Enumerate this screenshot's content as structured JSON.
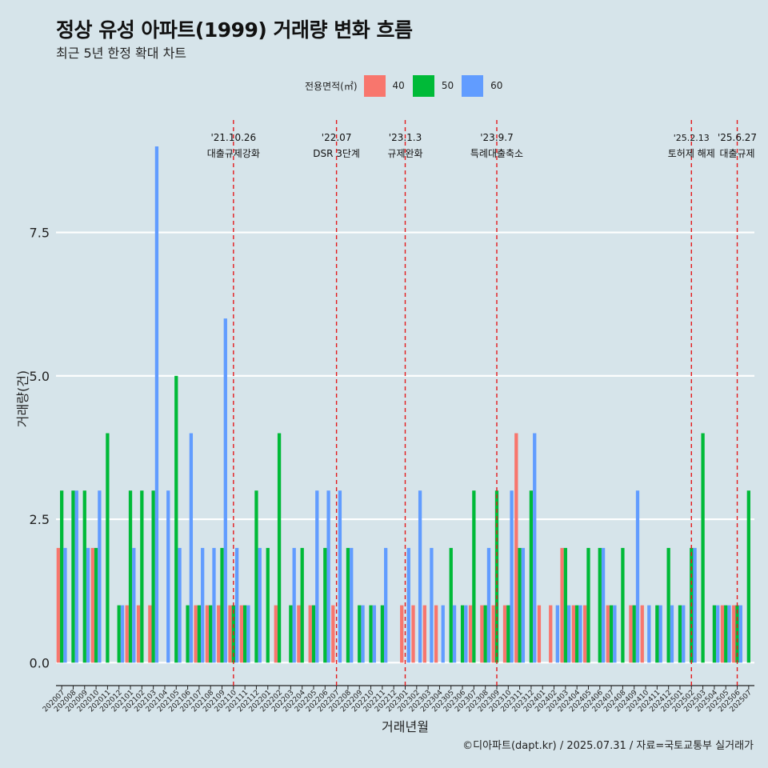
{
  "chart_data": {
    "type": "bar",
    "title": "정상 유성 아파트(1999) 거래량 변화 흐름",
    "subtitle": "최근 5년 한정 확대 차트",
    "xlabel": "거래년월",
    "ylabel": "거래량(건)",
    "ylim": [
      -0.4,
      9.6
    ],
    "y_ticks": [
      "0.0",
      "2.5",
      "5.0",
      "7.5"
    ],
    "grid": true,
    "legend": {
      "title": "전용면적(㎡)",
      "position": "top"
    },
    "categories": [
      "202007",
      "202008",
      "202009",
      "202010",
      "202011",
      "202012",
      "202101",
      "202102",
      "202103",
      "202104",
      "202105",
      "202106",
      "202107",
      "202108",
      "202109",
      "202110",
      "202111",
      "202112",
      "202201",
      "202202",
      "202203",
      "202204",
      "202205",
      "202206",
      "202207",
      "202208",
      "202209",
      "202210",
      "202211",
      "202212",
      "202301",
      "202302",
      "202303",
      "202304",
      "202305",
      "202306",
      "202307",
      "202308",
      "202309",
      "202310",
      "202311",
      "202312",
      "202401",
      "202402",
      "202403",
      "202404",
      "202405",
      "202406",
      "202407",
      "202408",
      "202409",
      "202410",
      "202411",
      "202412",
      "202501",
      "202502",
      "202503",
      "202504",
      "202505",
      "202506",
      "202507"
    ],
    "series": [
      {
        "name": "40",
        "color": "#F8766D",
        "values": [
          2,
          0,
          0,
          2,
          0,
          0,
          1,
          1,
          1,
          0,
          0,
          0,
          1,
          1,
          1,
          1,
          1,
          0,
          0,
          1,
          0,
          1,
          1,
          0,
          1,
          0,
          0,
          0,
          0,
          0,
          1,
          1,
          1,
          1,
          0,
          0,
          1,
          1,
          1,
          1,
          4,
          0,
          1,
          1,
          2,
          1,
          1,
          0,
          1,
          0,
          1,
          1,
          0,
          0,
          0,
          0,
          0,
          0,
          1,
          1,
          0
        ]
      },
      {
        "name": "50",
        "color": "#00BA38",
        "values": [
          3,
          3,
          3,
          2,
          4,
          1,
          3,
          3,
          3,
          0,
          5,
          1,
          1,
          1,
          2,
          1,
          1,
          3,
          2,
          4,
          1,
          2,
          1,
          2,
          0,
          2,
          1,
          1,
          1,
          0,
          0,
          0,
          0,
          0,
          2,
          1,
          3,
          1,
          3,
          1,
          2,
          3,
          0,
          0,
          2,
          1,
          2,
          2,
          1,
          2,
          1,
          0,
          1,
          2,
          1,
          2,
          4,
          1,
          1,
          1,
          3
        ]
      },
      {
        "name": "60",
        "color": "#619CFF",
        "values": [
          2,
          3,
          2,
          3,
          0,
          1,
          2,
          0,
          9,
          3,
          2,
          4,
          2,
          2,
          6,
          2,
          1,
          2,
          0,
          0,
          2,
          0,
          3,
          3,
          3,
          2,
          1,
          1,
          2,
          0,
          2,
          3,
          2,
          1,
          1,
          1,
          0,
          2,
          0,
          3,
          2,
          4,
          0,
          1,
          1,
          1,
          0,
          2,
          1,
          0,
          3,
          1,
          1,
          1,
          1,
          2,
          0,
          1,
          1,
          1,
          0
        ]
      }
    ],
    "events": [
      {
        "date": "'21.10.26",
        "label": "대출규제강화",
        "x": "202110"
      },
      {
        "date": "'22.07",
        "label": "DSR 3단계",
        "x": "202207"
      },
      {
        "date": "'23.1.3",
        "label": "규제완화",
        "x": "202301"
      },
      {
        "date": "'23.9.7",
        "label": "특례대출축소",
        "x": "202309"
      },
      {
        "date": "'25.2.13",
        "label": "토허제 해제",
        "x": "202502"
      },
      {
        "date": "'25.6.27",
        "label": "대출규제",
        "x": "202506"
      }
    ]
  },
  "caption": "©디아파트(dapt.kr) / 2025.07.31 / 자료=국토교통부 실거래가"
}
